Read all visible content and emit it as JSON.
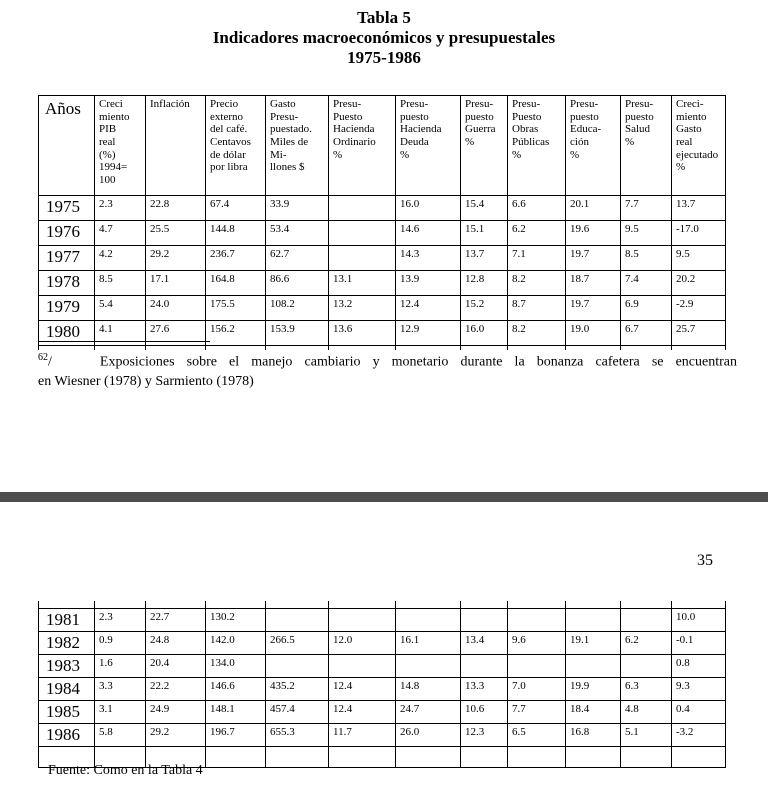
{
  "title": {
    "line1": "Tabla 5",
    "line2": "Indicadores macroeconómicos y presupuestales",
    "line3": "1975-1986"
  },
  "table": {
    "columns": [
      "Años",
      "Creci\nmiento\nPIB\nreal\n(%)\n1994=\n100",
      "Inflación",
      "Precio\nexterno\ndel café.\nCentavos\nde dólar\npor libra",
      "Gasto\nPresu-\npuestado.\nMiles de\nMi-\nllones $",
      "Presu-\nPuesto\nHacienda\nOrdinario\n%",
      "Presu-\npuesto\nHacienda\nDeuda\n%",
      "Presu-\npuesto\nGuerra\n%",
      "Presu-\nPuesto\nObras\nPúblicas\n%",
      "Presu-\npuesto\nEduca-\nción\n%",
      "Presu-\npuesto\nSalud\n%",
      "Creci-\nmiento\nGasto\nreal\nejecutado\n%"
    ],
    "rows_page1": [
      {
        "year": "1975",
        "values": [
          "2.3",
          "22.8",
          "67.4",
          "33.9",
          "",
          "16.0",
          "15.4",
          "6.6",
          "20.1",
          "7.7",
          "13.7"
        ]
      },
      {
        "year": "1976",
        "values": [
          "4.7",
          "25.5",
          "144.8",
          "53.4",
          "",
          "14.6",
          "15.1",
          "6.2",
          "19.6",
          "9.5",
          "-17.0"
        ]
      },
      {
        "year": "1977",
        "values": [
          "4.2",
          "29.2",
          "236.7",
          "62.7",
          "",
          "14.3",
          "13.7",
          "7.1",
          "19.7",
          "8.5",
          "9.5"
        ]
      },
      {
        "year": "1978",
        "values": [
          "8.5",
          "17.1",
          "164.8",
          "86.6",
          "13.1",
          "13.9",
          "12.8",
          "8.2",
          "18.7",
          "7.4",
          "20.2"
        ]
      },
      {
        "year": "1979",
        "values": [
          "5.4",
          "24.0",
          "175.5",
          "108.2",
          "13.2",
          "12.4",
          "15.2",
          "8.7",
          "19.7",
          "6.9",
          "-2.9"
        ]
      },
      {
        "year": "1980",
        "values": [
          "4.1",
          "27.6",
          "156.2",
          "153.9",
          "13.6",
          "12.9",
          "16.0",
          "8.2",
          "19.0",
          "6.7",
          "25.7"
        ]
      }
    ],
    "rows_page2": [
      {
        "year": "1981",
        "values": [
          "2.3",
          "22.7",
          "130.2",
          "",
          "",
          "",
          "",
          "",
          "",
          "",
          "10.0"
        ]
      },
      {
        "year": "1982",
        "values": [
          "0.9",
          "24.8",
          "142.0",
          "266.5",
          "12.0",
          "16.1",
          "13.4",
          "9.6",
          "19.1",
          "6.2",
          "-0.1"
        ]
      },
      {
        "year": "1983",
        "values": [
          "1.6",
          "20.4",
          "134.0",
          "",
          "",
          "",
          "",
          "",
          "",
          "",
          "0.8"
        ]
      },
      {
        "year": "1984",
        "values": [
          "3.3",
          "22.2",
          "146.6",
          "435.2",
          "12.4",
          "14.8",
          "13.3",
          "7.0",
          "19.9",
          "6.3",
          "9.3"
        ]
      },
      {
        "year": "1985",
        "values": [
          "3.1",
          "24.9",
          "148.1",
          "457.4",
          "12.4",
          "24.7",
          "10.6",
          "7.7",
          "18.4",
          "4.8",
          "0.4"
        ]
      },
      {
        "year": "1986",
        "values": [
          "5.8",
          "29.2",
          "196.7",
          "655.3",
          "11.7",
          "26.0",
          "12.3",
          "6.5",
          "16.8",
          "5.1",
          "-3.2"
        ]
      }
    ]
  },
  "footnote": {
    "sup": "62",
    "slash": "/",
    "text_line1": "Exposiciones sobre el manejo cambiario y monetario durante la bonanza cafetera se encuentran",
    "text_line2": "en Wiesner (1978) y Sarmiento (1978)"
  },
  "page_number": "35",
  "source": "Fuente: Como en la Tabla 4",
  "colors": {
    "divider": "#4d4d4d",
    "border": "#000000",
    "text": "#000000",
    "background": "#ffffff"
  }
}
